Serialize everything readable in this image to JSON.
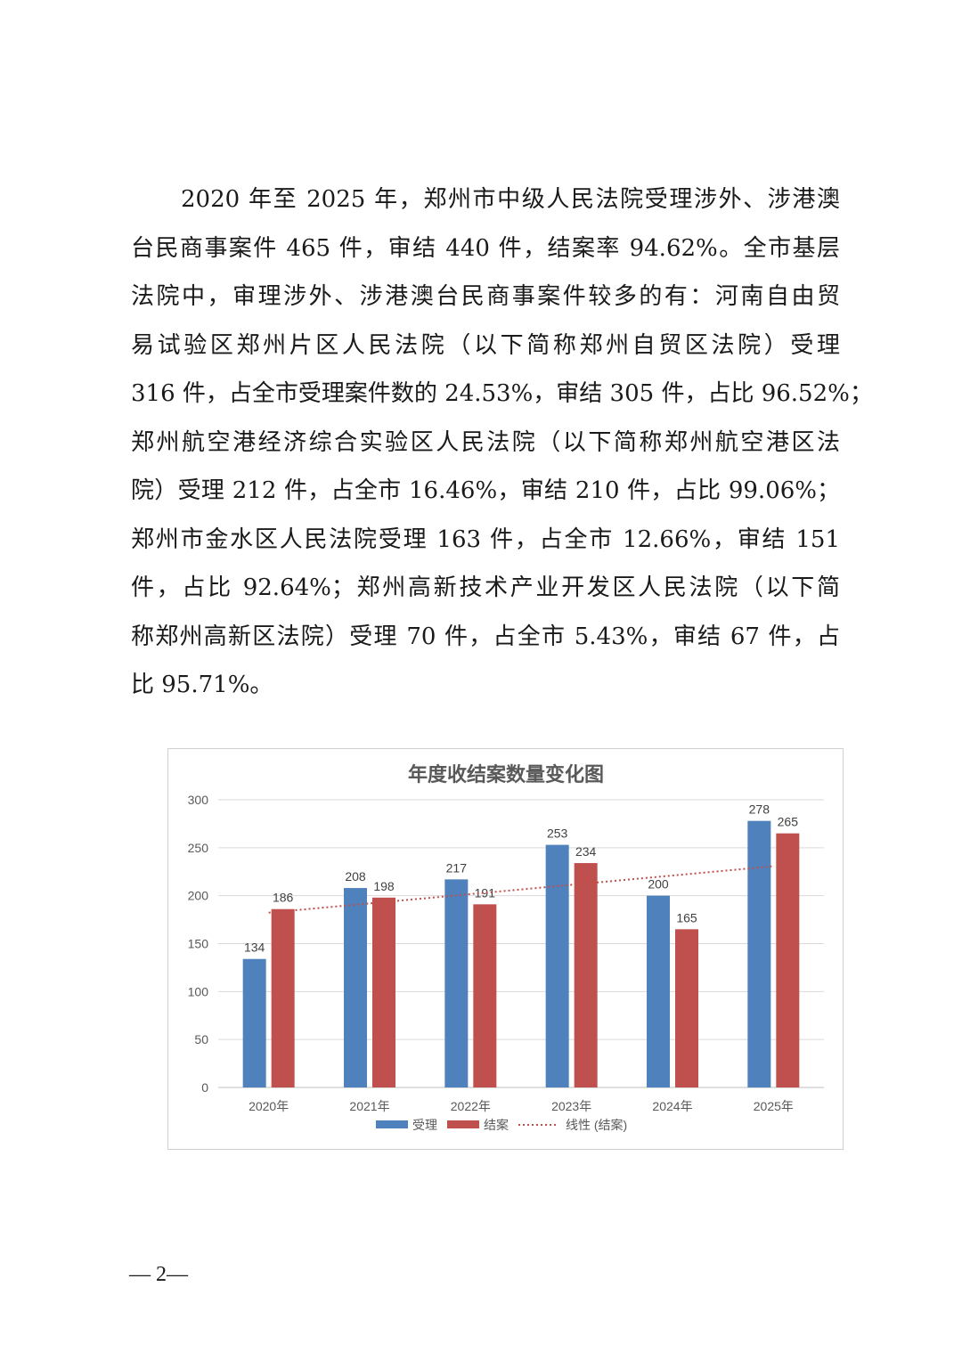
{
  "paragraph_lines": [
    "2020 年至 2025 年，郑州市中级人民法院受理涉外、涉港澳",
    "台民商事案件 465 件，审结 440 件，结案率 94.62%。全市基层",
    "法院中，审理涉外、涉港澳台民商事案件较多的有：河南自由贸",
    "易试验区郑州片区人民法院（以下简称郑州自贸区法院）受理",
    "316 件，占全市受理案件数的 24.53%，审结 305 件，占比 96.52%；",
    "郑州航空港经济综合实验区人民法院（以下简称郑州航空港区法",
    "院）受理 212 件，占全市 16.46%，审结 210 件，占比 99.06%；",
    "郑州市金水区人民法院受理 163 件，占全市 12.66%，审结 151",
    "件，占比 92.64%；郑州高新技术产业开发区人民法院（以下简",
    "称郑州高新区法院）受理 70 件，占全市 5.43%，审结 67 件，占",
    "比 95.71%。"
  ],
  "chart_data": {
    "type": "bar",
    "title": "年度收结案数量变化图",
    "categories": [
      "2020年",
      "2021年",
      "2022年",
      "2023年",
      "2024年",
      "2025年"
    ],
    "series": [
      {
        "name": "受理",
        "values": [
          134,
          208,
          217,
          253,
          200,
          278
        ],
        "color": "#4f81bd"
      },
      {
        "name": "结案",
        "values": [
          186,
          198,
          191,
          234,
          165,
          265
        ],
        "color": "#c0504d"
      }
    ],
    "trendline": {
      "name": "线性 (结案)",
      "of_series": "结案",
      "type": "linear",
      "color": "#c0504d",
      "style": "dotted"
    },
    "ylim": [
      0,
      300
    ],
    "yticks": [
      0,
      50,
      100,
      150,
      200,
      250,
      300
    ],
    "grid": true,
    "data_labels": true,
    "legend": "bottom"
  },
  "footer": {
    "page_number": "— 2—"
  }
}
